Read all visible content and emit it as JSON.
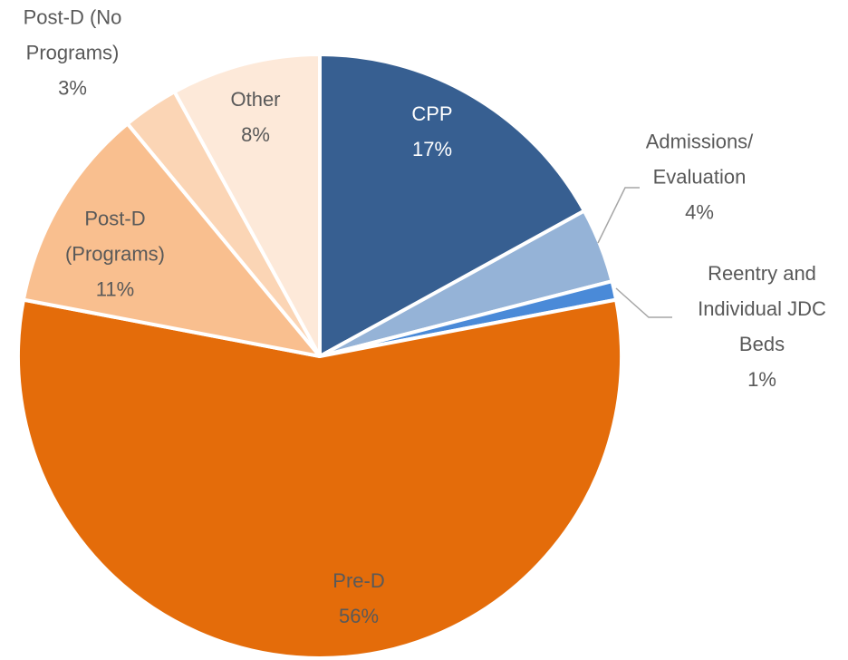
{
  "chart_data": {
    "type": "pie",
    "categories": [
      "CPP",
      "Admissions/ Evaluation",
      "Reentry and Individual JDC Beds",
      "Pre-D",
      "Post-D (Programs)",
      "Post-D (No Programs)",
      "Other"
    ],
    "values": [
      17,
      4,
      1,
      56,
      11,
      3,
      8
    ],
    "value_labels": [
      "17%",
      "4%",
      "1%",
      "56%",
      "11%",
      "3%",
      "8%"
    ],
    "colors": [
      "#375f91",
      "#95b3d7",
      "#4a8ad8",
      "#e46c0a",
      "#f9bf8f",
      "#fbd5b5",
      "#fde9d9"
    ]
  }
}
